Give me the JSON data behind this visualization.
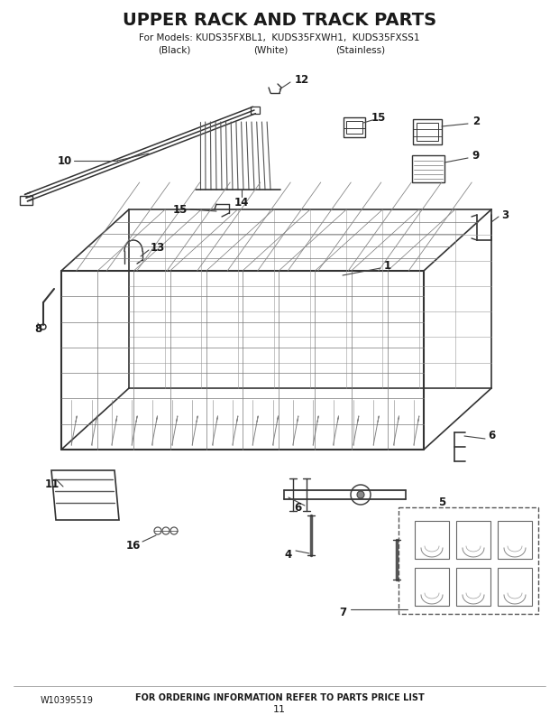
{
  "title": "UPPER RACK AND TRACK PARTS",
  "subtitle_line1": "For Models: KUDS35FXBL1,  KUDS35FXWH1,  KUDS35FXSS1",
  "subtitle_line2_a": "(Black)",
  "subtitle_line2_b": "(White)",
  "subtitle_line2_c": "(Stainless)",
  "footer_left": "W10395519",
  "footer_center": "FOR ORDERING INFORMATION REFER TO PARTS PRICE LIST",
  "footer_page": "11",
  "bg_color": "#ffffff",
  "lc": "#2a2a2a",
  "figsize": [
    6.2,
    8.02
  ],
  "dpi": 100
}
